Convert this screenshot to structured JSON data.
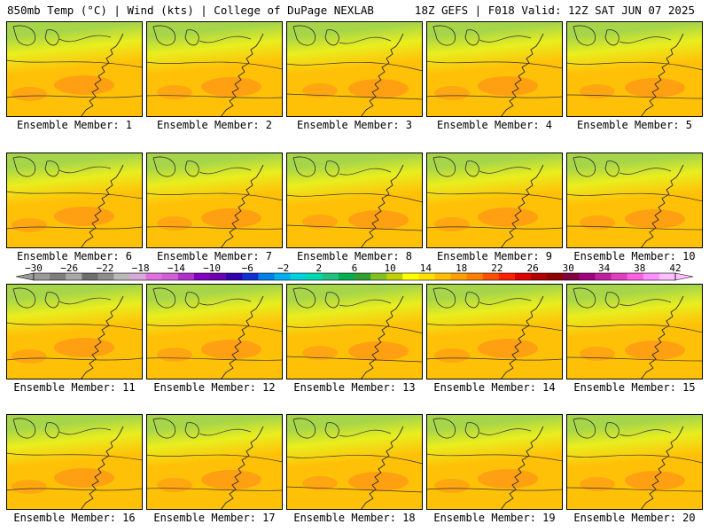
{
  "header": {
    "left": "850mb Temp (°C) | Wind (kts) | College of DuPage NEXLAB",
    "right": "18Z GEFS | F018 Valid: 12Z SAT JUN 07 2025"
  },
  "panels": [
    {
      "label": "Ensemble Member: 1"
    },
    {
      "label": "Ensemble Member: 2"
    },
    {
      "label": "Ensemble Member: 3"
    },
    {
      "label": "Ensemble Member: 4"
    },
    {
      "label": "Ensemble Member: 5"
    },
    {
      "label": "Ensemble Member: 6"
    },
    {
      "label": "Ensemble Member: 7"
    },
    {
      "label": "Ensemble Member: 8"
    },
    {
      "label": "Ensemble Member: 9"
    },
    {
      "label": "Ensemble Member: 10"
    },
    {
      "label": "Ensemble Member: 11"
    },
    {
      "label": "Ensemble Member: 12"
    },
    {
      "label": "Ensemble Member: 13"
    },
    {
      "label": "Ensemble Member: 14"
    },
    {
      "label": "Ensemble Member: 15"
    },
    {
      "label": "Ensemble Member: 16"
    },
    {
      "label": "Ensemble Member: 17"
    },
    {
      "label": "Ensemble Member: 18"
    },
    {
      "label": "Ensemble Member: 19"
    },
    {
      "label": "Ensemble Member: 20"
    }
  ],
  "colorbar": {
    "ticks": [
      "-30",
      "-26",
      "-22",
      "-18",
      "-14",
      "-10",
      "-6",
      "-2",
      "2",
      "6",
      "10",
      "14",
      "18",
      "22",
      "26",
      "30",
      "34",
      "38",
      "42"
    ],
    "colors": [
      "#9a9a9a",
      "#7e7e7e",
      "#a8a8a8",
      "#6e6e6e",
      "#8e8e8e",
      "#b9b9b9",
      "#d8a8d8",
      "#e070e0",
      "#d060d8",
      "#b030c8",
      "#8000c0",
      "#6a00b0",
      "#3000b0",
      "#1030d0",
      "#0080e8",
      "#00b0f0",
      "#00d0e0",
      "#00d8b0",
      "#20c080",
      "#00b050",
      "#30a030",
      "#80c020",
      "#c0d000",
      "#ffff00",
      "#ffe000",
      "#ffc000",
      "#ffa000",
      "#ff8000",
      "#ff5000",
      "#ff2000",
      "#e00000",
      "#b00000",
      "#900000",
      "#800040",
      "#a00080",
      "#c020a0",
      "#e040c0",
      "#ff60e0",
      "#ff90ff",
      "#ffc0ff"
    ],
    "temp_colors": {
      "cold": "#a6d54a",
      "mid": "#e9ee1e",
      "warm": "#ffc107",
      "hot": "#ff9a14"
    }
  }
}
